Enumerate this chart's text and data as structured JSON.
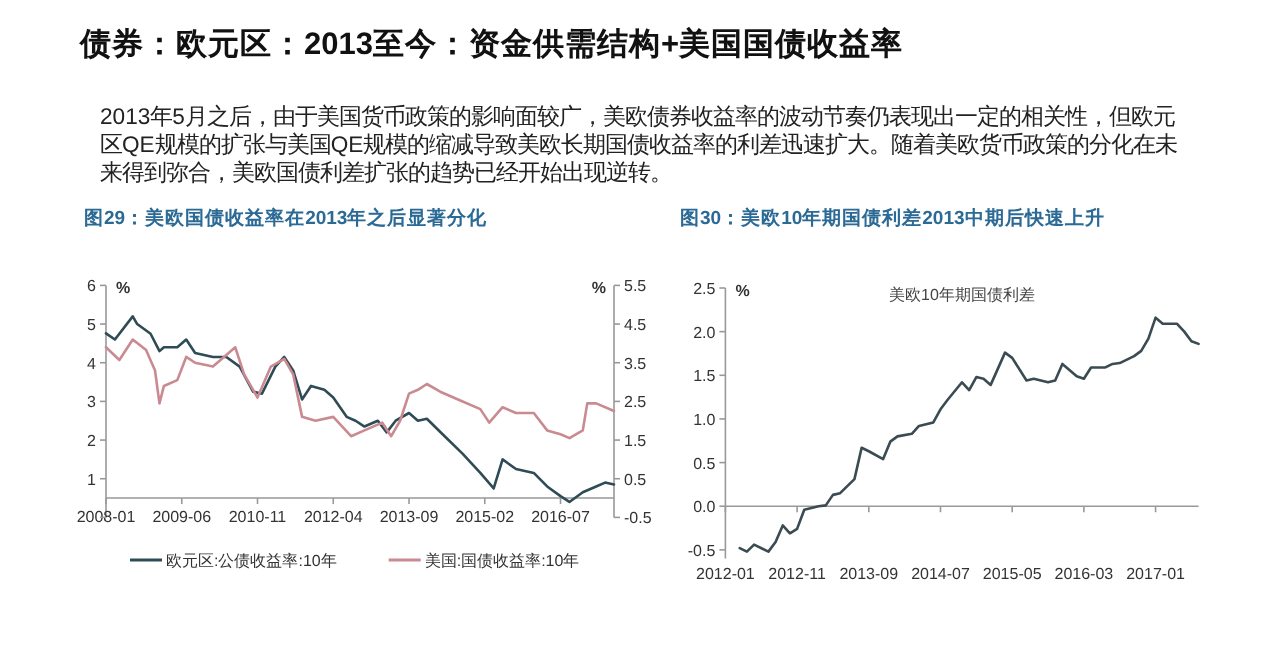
{
  "chart_data": [
    {
      "type": "line",
      "title": "图29：美欧国债收益率在2013年之后显著分化",
      "annotations": [
        "债券：欧元区：2013至今：资金供需结构+美国国债收益率",
        "2013年5月之后，由于美国货币政策的影响面较广，美欧债券收益率的波动节奏仍表现出一定的相关性，但欧元区QE规模的扩张与美国QE规模的缩减导致美欧长期国债收益率的利差迅速扩大。随着美欧货币政策的分化在未来得到弥合，美欧国债利差扩张的趋势已经开始出现逆转。"
      ],
      "ylabel": "%",
      "y2label": "%",
      "legend": "bottom",
      "xlim": [
        "2008-01",
        "2017-07"
      ],
      "xticks": [
        "2008-01",
        "2009-06",
        "2010-11",
        "2012-04",
        "2013-09",
        "2015-02",
        "2016-07"
      ],
      "ylim": [
        0,
        6
      ],
      "yticks": [
        {
          "value": 0,
          "label": null
        },
        1,
        2,
        3,
        4,
        5,
        6
      ],
      "y2lim": [
        -0.5,
        5.5
      ],
      "y2ticks": [
        -0.5,
        0.5,
        1.5,
        2.5,
        3.5,
        4.5,
        5.5
      ],
      "series": [
        {
          "name": "欧元区:公债收益率:10年",
          "color": "#2f4b55",
          "x": [
            "2008-01",
            "2008-03",
            "2008-07",
            "2008-08",
            "2008-11",
            "2009-01",
            "2009-02",
            "2009-05",
            "2009-07",
            "2009-09",
            "2010-01",
            "2010-04",
            "2010-07",
            "2010-10",
            "2010-12",
            "2011-03",
            "2011-05",
            "2011-07",
            "2011-09",
            "2011-11",
            "2012-02",
            "2012-04",
            "2012-07",
            "2012-09",
            "2012-11",
            "2013-02",
            "2013-04",
            "2013-06",
            "2013-09",
            "2013-11",
            "2014-01",
            "2014-05",
            "2014-09",
            "2015-01",
            "2015-04",
            "2015-06",
            "2015-09",
            "2016-01",
            "2016-04",
            "2016-07",
            "2016-09",
            "2016-12",
            "2017-03",
            "2017-05",
            "2017-07"
          ],
          "values": [
            4.76,
            4.6,
            5.2,
            5.0,
            4.75,
            4.3,
            4.4,
            4.4,
            4.6,
            4.25,
            4.15,
            4.15,
            3.9,
            3.25,
            3.2,
            3.9,
            4.15,
            3.8,
            3.05,
            3.4,
            3.3,
            3.1,
            2.6,
            2.5,
            2.35,
            2.5,
            2.2,
            2.5,
            2.7,
            2.5,
            2.55,
            2.1,
            1.65,
            1.15,
            0.75,
            1.5,
            1.25,
            1.15,
            0.8,
            0.55,
            0.4,
            0.65,
            0.8,
            0.9,
            0.85
          ]
        },
        {
          "name": "美国:国债收益率:10年",
          "color": "#c98a92",
          "axis": "y2",
          "x": [
            "2008-01",
            "2008-04",
            "2008-07",
            "2008-10",
            "2008-12",
            "2009-01",
            "2009-02",
            "2009-05",
            "2009-07",
            "2009-09",
            "2010-01",
            "2010-04",
            "2010-06",
            "2010-08",
            "2010-11",
            "2011-02",
            "2011-05",
            "2011-07",
            "2011-09",
            "2011-12",
            "2012-04",
            "2012-08",
            "2012-11",
            "2013-03",
            "2013-05",
            "2013-07",
            "2013-09",
            "2013-11",
            "2014-01",
            "2014-04",
            "2014-08",
            "2015-01",
            "2015-03",
            "2015-06",
            "2015-09",
            "2016-01",
            "2016-04",
            "2016-07",
            "2016-09",
            "2016-12",
            "2017-01",
            "2017-03",
            "2017-07"
          ],
          "values": [
            3.9,
            3.57,
            4.1,
            3.83,
            3.3,
            2.45,
            2.9,
            3.05,
            3.65,
            3.5,
            3.4,
            3.7,
            3.9,
            3.2,
            2.6,
            3.4,
            3.6,
            3.2,
            2.1,
            2.0,
            2.1,
            1.6,
            1.75,
            1.95,
            1.6,
            2.0,
            2.7,
            2.8,
            2.95,
            2.75,
            2.55,
            2.3,
            1.95,
            2.35,
            2.2,
            2.2,
            1.75,
            1.65,
            1.55,
            1.75,
            2.45,
            2.45,
            2.25
          ]
        }
      ]
    },
    {
      "type": "line",
      "title": "图30：美欧10年期国债利差2013中期后快速上升",
      "subtitle": "美欧10年期国债利差",
      "ylabel": "%",
      "xlim": [
        "2012-01",
        "2017-07"
      ],
      "xticks": [
        "2012-01",
        "2012-11",
        "2013-09",
        "2014-07",
        "2015-05",
        "2016-03",
        "2017-01"
      ],
      "ylim": [
        -0.6,
        2.5
      ],
      "yticks": [
        -0.5,
        {
          "value": 0,
          "label": "0.0"
        },
        0.5,
        {
          "value": 1,
          "label": "1.0"
        },
        1.5,
        {
          "value": 2,
          "label": "2.0"
        },
        2.5
      ],
      "series": [
        {
          "color": "#3a4b51",
          "x": [
            "2012-03",
            "2012-04",
            "2012-05",
            "2012-07",
            "2012-08",
            "2012-09",
            "2012-10",
            "2012-11",
            "2012-12",
            "2013-02",
            "2013-03",
            "2013-04",
            "2013-05",
            "2013-07",
            "2013-08",
            "2013-09",
            "2013-11",
            "2013-12",
            "2014-01",
            "2014-03",
            "2014-04",
            "2014-06",
            "2014-07",
            "2014-08",
            "2014-10",
            "2014-11",
            "2014-12",
            "2015-01",
            "2015-02",
            "2015-04",
            "2015-05",
            "2015-07",
            "2015-08",
            "2015-10",
            "2015-11",
            "2015-12",
            "2016-02",
            "2016-03",
            "2016-04",
            "2016-06",
            "2016-07",
            "2016-08",
            "2016-10",
            "2016-11",
            "2016-12",
            "2017-01",
            "2017-02",
            "2017-04",
            "2017-05",
            "2017-06",
            "2017-07"
          ],
          "values": [
            -0.48,
            -0.52,
            -0.44,
            -0.52,
            -0.41,
            -0.22,
            -0.31,
            -0.26,
            -0.04,
            0,
            0.01,
            0.13,
            0.15,
            0.31,
            0.67,
            0.63,
            0.54,
            0.74,
            0.8,
            0.83,
            0.92,
            0.96,
            1.11,
            1.22,
            1.42,
            1.33,
            1.48,
            1.46,
            1.39,
            1.76,
            1.7,
            1.44,
            1.46,
            1.42,
            1.44,
            1.63,
            1.49,
            1.46,
            1.59,
            1.59,
            1.63,
            1.64,
            1.72,
            1.78,
            1.92,
            2.16,
            2.09,
            2.09,
            2.0,
            1.89,
            1.86
          ]
        }
      ]
    }
  ]
}
